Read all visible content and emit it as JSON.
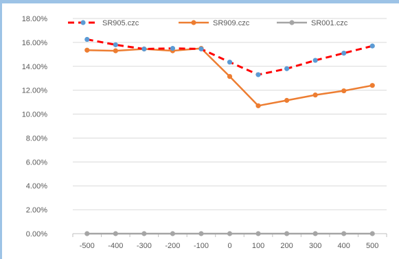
{
  "chart_data": {
    "type": "line",
    "title": "",
    "xlabel": "",
    "ylabel": "",
    "categories": [
      "-500",
      "-400",
      "-300",
      "-200",
      "-100",
      "0",
      "100",
      "200",
      "300",
      "400",
      "500"
    ],
    "ylim": [
      0,
      0.18
    ],
    "yticks": [
      "0.00%",
      "2.00%",
      "4.00%",
      "6.00%",
      "8.00%",
      "10.00%",
      "12.00%",
      "14.00%",
      "16.00%",
      "18.00%"
    ],
    "ytick_values": [
      0,
      0.02,
      0.04,
      0.06,
      0.08,
      0.1,
      0.12,
      0.14,
      0.16,
      0.18
    ],
    "grid": true,
    "legend_position": "top",
    "series": [
      {
        "name": "SR905.czc",
        "line_color": "#ff0000",
        "marker_color": "#5b9bd5",
        "dashed": true,
        "values": [
          0.1625,
          0.158,
          0.1545,
          0.155,
          0.1545,
          0.1435,
          0.133,
          0.138,
          0.145,
          0.151,
          0.157
        ]
      },
      {
        "name": "SR909.czc",
        "line_color": "#ed7d31",
        "marker_color": "#ed7d31",
        "dashed": false,
        "values": [
          0.1535,
          0.153,
          0.1545,
          0.153,
          0.155,
          0.1315,
          0.107,
          0.1115,
          0.116,
          0.1195,
          0.124
        ]
      },
      {
        "name": "SR001.czc",
        "line_color": "#a5a5a5",
        "marker_color": "#a5a5a5",
        "dashed": false,
        "values": [
          0,
          0,
          0,
          0,
          0,
          0,
          0,
          0,
          0,
          0,
          0
        ]
      }
    ]
  }
}
